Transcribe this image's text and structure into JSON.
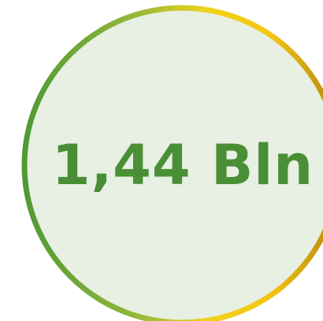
{
  "badge": {
    "value": "1,44 Bln"
  },
  "colors": {
    "fill": "#e8efe3",
    "text": "#4a8f35",
    "ring_gradient": [
      "#4f9a35",
      "#93b83a",
      "#f0d21a",
      "#f5c512",
      "#b5850f"
    ]
  }
}
